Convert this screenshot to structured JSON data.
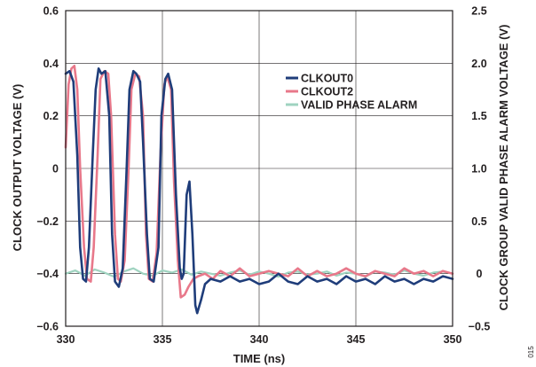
{
  "chart_data": {
    "type": "line",
    "title": "",
    "xlabel": "TIME (ns)",
    "ylabel": "CLOCK OUTPUT VOLTAGE (V)",
    "y2label": "CLOCK GROUP VALID PHASE ALARM VOLTAGE (V)",
    "xlim": [
      330,
      350
    ],
    "ylim": [
      -0.6,
      0.6
    ],
    "y2lim": [
      -0.5,
      2.5
    ],
    "xticks": [
      330,
      335,
      340,
      345,
      350
    ],
    "xtick_labels": [
      "330",
      "335",
      "340",
      "345",
      "350"
    ],
    "yticks": [
      -0.6,
      -0.4,
      -0.2,
      0,
      0.2,
      0.4,
      0.6
    ],
    "ytick_labels": [
      "−0.6",
      "−0.4",
      "−0.2",
      "0",
      "0.2",
      "0.4",
      "0.6"
    ],
    "y2ticks": [
      -0.5,
      0,
      0.5,
      1.0,
      1.5,
      2.0,
      2.5
    ],
    "y2tick_labels": [
      "−0.5",
      "0",
      "0.5",
      "1.0",
      "1.5",
      "2.0",
      "2.5"
    ],
    "grid": true,
    "legend_position": "top-right",
    "figure_id": "015",
    "series": [
      {
        "name": "CLKOUT0",
        "color": "#1f3d7a",
        "axis": "left",
        "x": [
          330.0,
          330.2,
          330.4,
          330.6,
          330.75,
          330.9,
          331.05,
          331.2,
          331.4,
          331.55,
          331.7,
          331.85,
          332.05,
          332.25,
          332.4,
          332.55,
          332.75,
          332.95,
          333.15,
          333.3,
          333.5,
          333.65,
          333.85,
          334.0,
          334.2,
          334.35,
          334.55,
          334.8,
          334.95,
          335.15,
          335.3,
          335.5,
          335.7,
          335.9,
          336.0,
          336.1,
          336.25,
          336.4,
          336.55,
          336.7,
          336.8,
          337.0,
          337.2,
          337.5,
          338.0,
          338.5,
          339.0,
          339.5,
          340.0,
          340.5,
          341.0,
          341.5,
          342.0,
          342.5,
          343.0,
          343.5,
          344.0,
          344.5,
          345.0,
          345.5,
          346.0,
          346.5,
          347.0,
          347.5,
          348.0,
          348.5,
          349.0,
          349.5,
          350.0
        ],
        "y": [
          0.36,
          0.37,
          0.33,
          0.05,
          -0.3,
          -0.42,
          -0.43,
          -0.3,
          0.05,
          0.3,
          0.38,
          0.36,
          0.37,
          0.2,
          -0.25,
          -0.43,
          -0.45,
          -0.38,
          0.0,
          0.3,
          0.37,
          0.36,
          0.33,
          0.1,
          -0.25,
          -0.42,
          -0.43,
          -0.3,
          0.2,
          0.34,
          0.36,
          0.3,
          -0.1,
          -0.38,
          -0.42,
          -0.4,
          -0.1,
          -0.05,
          -0.25,
          -0.52,
          -0.55,
          -0.5,
          -0.44,
          -0.42,
          -0.43,
          -0.41,
          -0.43,
          -0.42,
          -0.44,
          -0.43,
          -0.4,
          -0.43,
          -0.44,
          -0.41,
          -0.43,
          -0.42,
          -0.44,
          -0.41,
          -0.43,
          -0.42,
          -0.44,
          -0.41,
          -0.43,
          -0.42,
          -0.44,
          -0.42,
          -0.43,
          -0.41,
          -0.42
        ]
      },
      {
        "name": "CLKOUT2",
        "color": "#e8788a",
        "axis": "left",
        "x": [
          330.0,
          330.15,
          330.3,
          330.45,
          330.6,
          330.75,
          330.95,
          331.1,
          331.3,
          331.45,
          331.65,
          331.8,
          332.0,
          332.2,
          332.35,
          332.55,
          332.7,
          332.85,
          333.05,
          333.25,
          333.4,
          333.6,
          333.8,
          334.0,
          334.15,
          334.3,
          334.5,
          334.7,
          334.9,
          335.1,
          335.25,
          335.45,
          335.6,
          335.8,
          335.95,
          336.15,
          336.35,
          336.6,
          336.85,
          337.2,
          337.6,
          338.0,
          338.5,
          339.0,
          339.5,
          340.0,
          340.5,
          341.0,
          341.5,
          342.0,
          342.5,
          343.0,
          343.5,
          344.0,
          344.5,
          345.0,
          345.5,
          346.0,
          346.5,
          347.0,
          347.5,
          348.0,
          348.5,
          349.0,
          349.5,
          350.0
        ],
        "y": [
          0.08,
          0.32,
          0.38,
          0.39,
          0.3,
          0.0,
          -0.3,
          -0.42,
          -0.43,
          -0.3,
          0.05,
          0.34,
          0.37,
          0.36,
          0.2,
          -0.25,
          -0.42,
          -0.43,
          -0.35,
          0.0,
          0.3,
          0.36,
          0.35,
          0.2,
          -0.25,
          -0.42,
          -0.43,
          -0.32,
          0.05,
          0.32,
          0.35,
          0.3,
          -0.05,
          -0.35,
          -0.49,
          -0.48,
          -0.45,
          -0.42,
          -0.41,
          -0.4,
          -0.42,
          -0.39,
          -0.41,
          -0.38,
          -0.41,
          -0.4,
          -0.39,
          -0.4,
          -0.41,
          -0.38,
          -0.41,
          -0.39,
          -0.41,
          -0.4,
          -0.38,
          -0.4,
          -0.41,
          -0.39,
          -0.4,
          -0.41,
          -0.38,
          -0.4,
          -0.39,
          -0.41,
          -0.39,
          -0.4
        ]
      },
      {
        "name": "VALID PHASE ALARM",
        "color": "#9fd3c0",
        "axis": "right",
        "x": [
          330.0,
          330.5,
          331.0,
          331.5,
          332.0,
          332.5,
          333.0,
          333.5,
          334.0,
          334.5,
          335.0,
          335.5,
          336.0,
          336.5,
          337.0,
          337.5,
          338.0,
          338.5,
          339.0,
          339.5,
          340.0,
          340.5,
          341.0,
          341.5,
          342.0,
          342.5,
          343.0,
          343.5,
          344.0,
          344.5,
          345.0,
          345.5,
          346.0,
          346.5,
          347.0,
          347.5,
          348.0,
          348.5,
          349.0,
          349.5,
          350.0
        ],
        "y": [
          0.0,
          0.03,
          -0.02,
          0.04,
          0.01,
          -0.03,
          0.02,
          0.05,
          0.0,
          -0.02,
          0.03,
          0.01,
          0.04,
          -0.01,
          0.02,
          0.0,
          -0.02,
          0.01,
          0.03,
          -0.01,
          0.02,
          0.0,
          -0.03,
          0.01,
          0.02,
          -0.01,
          0.0,
          0.02,
          -0.02,
          0.01,
          0.0,
          -0.03,
          0.02,
          0.01,
          -0.01,
          0.03,
          0.0,
          -0.02,
          0.01,
          0.02,
          0.0
        ]
      }
    ]
  }
}
